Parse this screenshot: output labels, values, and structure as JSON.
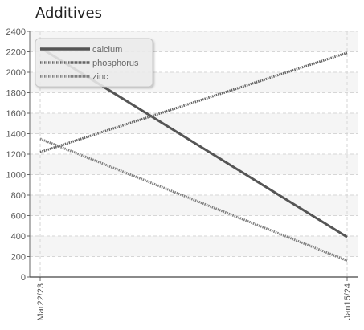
{
  "chart_data": {
    "type": "line",
    "title": "Additives",
    "xlabel": "",
    "ylabel": "",
    "x": [
      "Mar22/23",
      "Jan15/24"
    ],
    "ylim": [
      0,
      2400
    ],
    "yticks": [
      0,
      200,
      400,
      600,
      800,
      1000,
      1200,
      1400,
      1600,
      1800,
      2000,
      2200,
      2400
    ],
    "grid": true,
    "legend_position": "top-left",
    "series": [
      {
        "name": "calcium",
        "values": [
          2240,
          390
        ],
        "color": "#555555",
        "style": "solid"
      },
      {
        "name": "phosphorus",
        "values": [
          1220,
          2190
        ],
        "color": "#666666",
        "style": "dotted"
      },
      {
        "name": "zinc",
        "values": [
          1350,
          160
        ],
        "color": "#808080",
        "style": "dotted"
      }
    ]
  }
}
